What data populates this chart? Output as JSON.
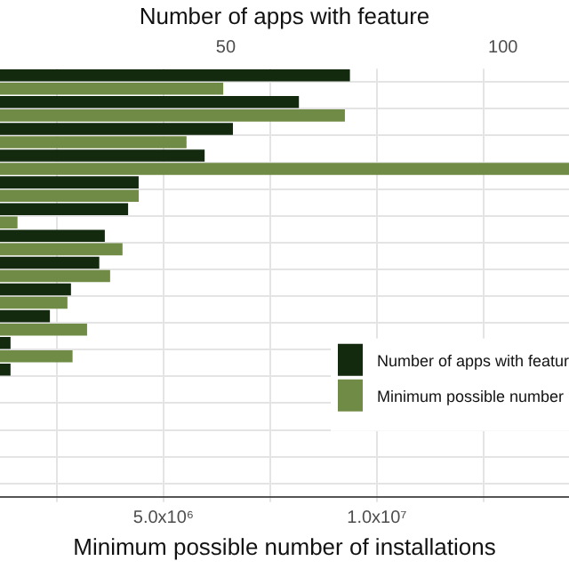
{
  "chart_data": {
    "type": "bar",
    "orientation": "horizontal",
    "xlabel": "Minimum possible number of installations",
    "x2label": "Number of apps with feature",
    "categories": [
      null,
      null,
      null,
      null,
      null,
      null,
      null,
      null,
      null,
      null,
      null,
      null,
      null,
      null,
      null,
      null
    ],
    "series": [
      {
        "name": "Number of apps with featur",
        "color": "#132a0f",
        "axis": "x2",
        "values": [
          72.4,
          63.2,
          51.3,
          46.2,
          34.3,
          32.4,
          28.2,
          27.2,
          22.1,
          18.3,
          11.2,
          11.2,
          null,
          null,
          null,
          null
        ]
      },
      {
        "name": "Minimum possible number",
        "color": "#6f8b45",
        "values": [
          6400000,
          9250000,
          5540000,
          14500000,
          4420000,
          1580000,
          4040000,
          3750000,
          2750000,
          3210000,
          2870000,
          null,
          null,
          null,
          null,
          null
        ]
      }
    ],
    "xlim": [
      1170000,
      14500000
    ],
    "xticks": [
      {
        "value": 2500000,
        "label": null
      },
      {
        "value": 5000000,
        "label": "5.0x10⁶"
      },
      {
        "value": 7500000,
        "label": null
      },
      {
        "value": 10000000,
        "label": "1.0x10⁷"
      },
      {
        "value": 12500000,
        "label": null
      }
    ],
    "x2lim": [
      9.3,
      111.9
    ],
    "x2ticks": [
      50,
      100
    ],
    "grid": true,
    "legend": "bottom right",
    "tick_labels": "x"
  }
}
